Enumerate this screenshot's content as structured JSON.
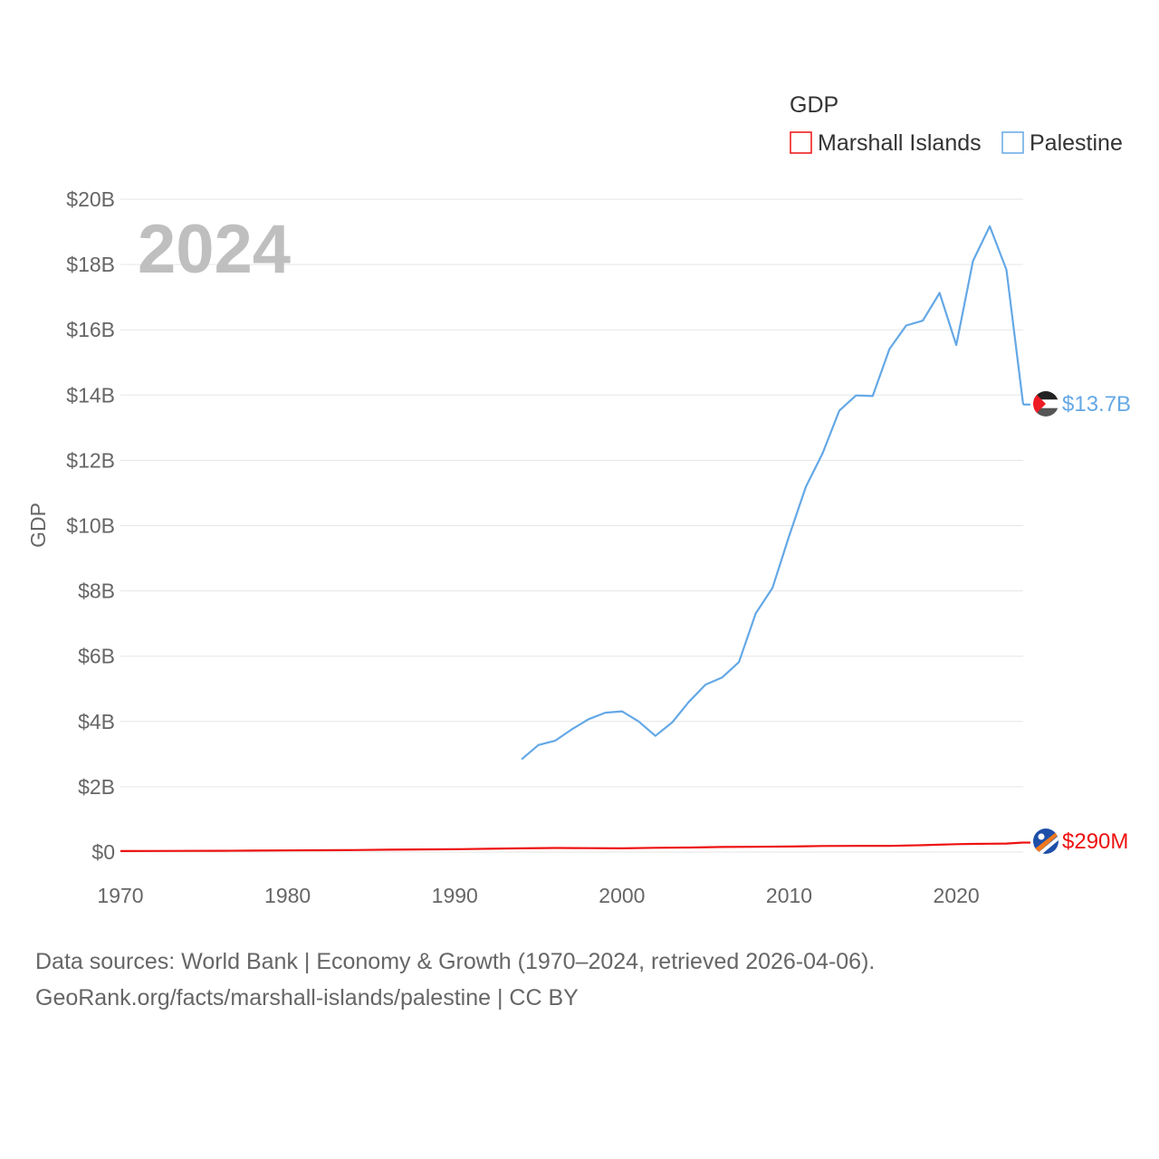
{
  "chart_data": {
    "type": "line",
    "legend_title": "GDP",
    "ylabel": "GDP",
    "year_label": "2024",
    "ylim": [
      0,
      20000000000
    ],
    "y_ticks": [
      {
        "value": 0,
        "label": "$0"
      },
      {
        "value": 2000000000,
        "label": "$2B"
      },
      {
        "value": 4000000000,
        "label": "$4B"
      },
      {
        "value": 6000000000,
        "label": "$6B"
      },
      {
        "value": 8000000000,
        "label": "$8B"
      },
      {
        "value": 10000000000,
        "label": "$10B"
      },
      {
        "value": 12000000000,
        "label": "$12B"
      },
      {
        "value": 14000000000,
        "label": "$14B"
      },
      {
        "value": 16000000000,
        "label": "$16B"
      },
      {
        "value": 18000000000,
        "label": "$18B"
      },
      {
        "value": 20000000000,
        "label": "$20B"
      }
    ],
    "xlim": [
      1970,
      2024
    ],
    "x_ticks": [
      {
        "value": 1970,
        "label": "1970"
      },
      {
        "value": 1980,
        "label": "1980"
      },
      {
        "value": 1990,
        "label": "1990"
      },
      {
        "value": 2000,
        "label": "2000"
      },
      {
        "value": 2010,
        "label": "2010"
      },
      {
        "value": 2020,
        "label": "2020"
      }
    ],
    "series": [
      {
        "name": "Marshall Islands",
        "color": "#ee1111",
        "end_label": "$290M",
        "flag_icon": "marshall-islands-flag-icon",
        "x": [
          1970,
          1972,
          1974,
          1976,
          1978,
          1980,
          1982,
          1984,
          1986,
          1988,
          1990,
          1992,
          1994,
          1996,
          1998,
          2000,
          2002,
          2004,
          2006,
          2008,
          2010,
          2012,
          2014,
          2016,
          2018,
          2020,
          2021,
          2022,
          2023,
          2024
        ],
        "values": [
          30000000,
          32000000,
          35000000,
          38000000,
          44000000,
          50000000,
          55000000,
          62000000,
          72000000,
          80000000,
          85000000,
          100000000,
          115000000,
          125000000,
          120000000,
          115000000,
          130000000,
          140000000,
          155000000,
          160000000,
          170000000,
          185000000,
          190000000,
          190000000,
          210000000,
          240000000,
          250000000,
          255000000,
          260000000,
          290000000
        ]
      },
      {
        "name": "Palestine",
        "color": "#64a8e6",
        "end_label": "$13.7B",
        "flag_icon": "palestine-flag-icon",
        "x": [
          1994,
          1995,
          1996,
          1997,
          1998,
          1999,
          2000,
          2001,
          2002,
          2003,
          2004,
          2005,
          2006,
          2007,
          2008,
          2009,
          2010,
          2011,
          2012,
          2013,
          2014,
          2015,
          2016,
          2017,
          2018,
          2019,
          2020,
          2021,
          2022,
          2023,
          2024
        ],
        "values": [
          2840000000,
          3280000000,
          3410000000,
          3760000000,
          4070000000,
          4270000000,
          4310000000,
          4000000000,
          3560000000,
          3970000000,
          4600000000,
          5130000000,
          5350000000,
          5820000000,
          7310000000,
          8090000000,
          9680000000,
          11190000000,
          12210000000,
          13520000000,
          13990000000,
          13970000000,
          15410000000,
          16130000000,
          16280000000,
          17130000000,
          15530000000,
          18110000000,
          19170000000,
          17840000000,
          13710000000
        ]
      }
    ]
  },
  "footer": {
    "line1": "Data sources: World Bank | Economy & Growth (1970–2024, retrieved 2026-04-06).",
    "line2": "GeoRank.org/facts/marshall-islands/palestine | CC BY"
  }
}
